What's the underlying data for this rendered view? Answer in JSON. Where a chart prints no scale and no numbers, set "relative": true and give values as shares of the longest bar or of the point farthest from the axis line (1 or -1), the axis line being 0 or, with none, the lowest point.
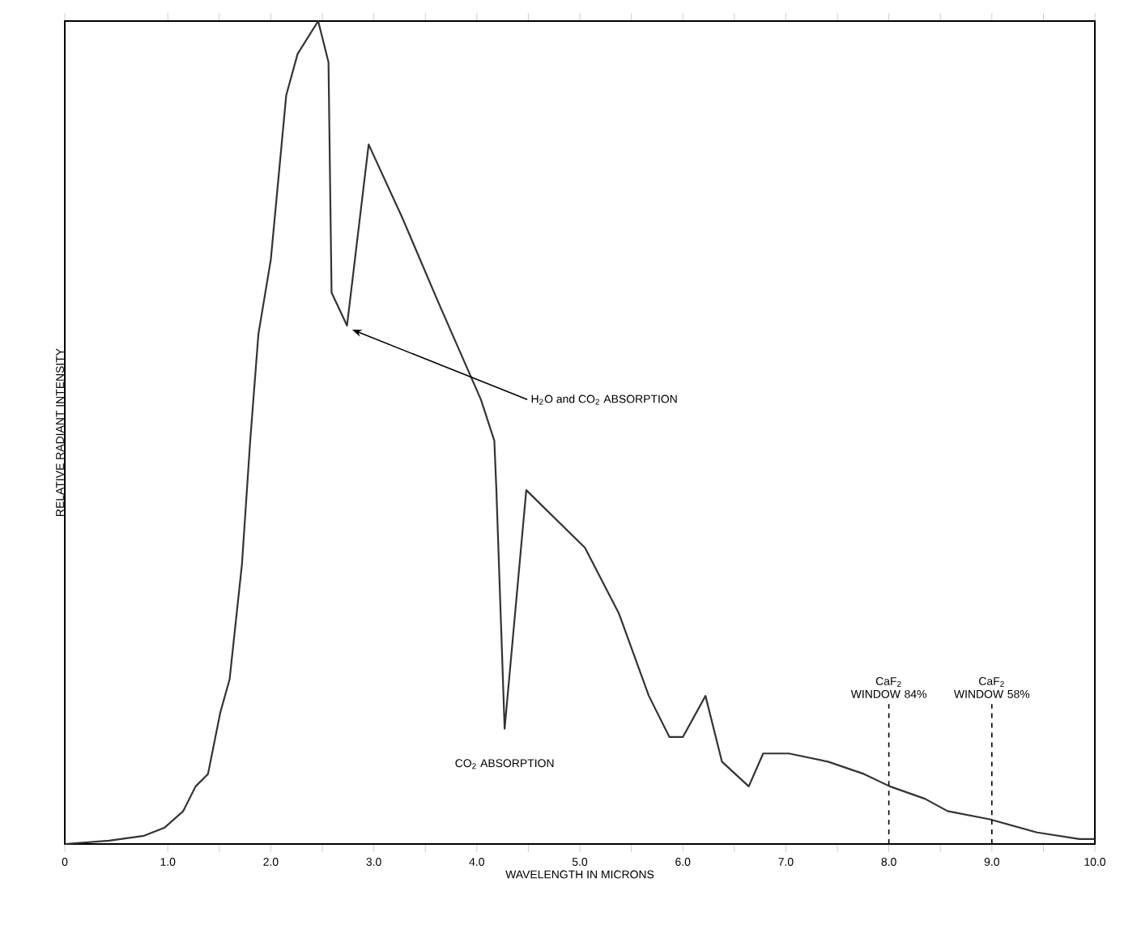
{
  "chart_data": {
    "type": "line",
    "relative": true,
    "xlabel": "WAVELENGTH IN MICRONS",
    "ylabel": "RELATIVE RADIANT INTENSITY",
    "color": "#333333",
    "xlim": [
      0,
      10
    ],
    "xticks": [
      0,
      {
        "value": 1,
        "label": "1.0"
      },
      {
        "value": 1.5,
        "label": null
      },
      {
        "value": 2,
        "label": "2.0"
      },
      {
        "value": 2.5,
        "label": null
      },
      {
        "value": 3,
        "label": "3.0"
      },
      {
        "value": 3.5,
        "label": null
      },
      {
        "value": 4,
        "label": "4.0"
      },
      {
        "value": 4.5,
        "label": null
      },
      {
        "value": 5,
        "label": "5.0"
      },
      {
        "value": 5.5,
        "label": null
      },
      {
        "value": 6,
        "label": "6.0"
      },
      {
        "value": 6.5,
        "label": null
      },
      {
        "value": 7,
        "label": "7.0"
      },
      {
        "value": 7.5,
        "label": null
      },
      {
        "value": 8,
        "label": "8.0"
      },
      {
        "value": 8.5,
        "label": null
      },
      {
        "value": 9,
        "label": "9.0"
      },
      {
        "value": 9.5,
        "label": null
      },
      {
        "value": 10,
        "label": "10.0"
      }
    ],
    "x": [
      0,
      0.43,
      0.77,
      0.97,
      1.15,
      1.27,
      1.39,
      1.51,
      1.6,
      1.72,
      1.8,
      1.88,
      2.0,
      2.15,
      2.26,
      2.46,
      2.56,
      2.59,
      2.74,
      2.95,
      3.28,
      3.62,
      4.04,
      4.17,
      4.19,
      4.27,
      4.48,
      5.05,
      5.38,
      5.67,
      5.87,
      6.0,
      6.22,
      6.38,
      6.64,
      6.78,
      7.03,
      7.41,
      7.76,
      8.01,
      8.35,
      8.57,
      8.98,
      9.44,
      9.85,
      10.0
    ],
    "values": [
      0,
      0.004,
      0.01,
      0.02,
      0.04,
      0.07,
      0.085,
      0.16,
      0.2,
      0.34,
      0.49,
      0.62,
      0.71,
      0.91,
      0.96,
      1,
      0.95,
      0.67,
      0.63,
      0.85,
      0.76,
      0.66,
      0.54,
      0.49,
      0.43,
      0.14,
      0.43,
      0.36,
      0.28,
      0.18,
      0.13,
      0.13,
      0.18,
      0.1,
      0.07,
      0.11,
      0.11,
      0.1,
      0.085,
      0.07,
      0.055,
      0.04,
      0.03,
      0.014,
      0.006,
      0.006
    ],
    "ref_lines": [
      {
        "axis": "x",
        "value": 8,
        "label": "CaF$_{2}$ WINDOW 84%",
        "line_style": "dashed"
      },
      {
        "axis": "x",
        "value": 9,
        "label": "CaF$_{2}$ WINDOW 58%",
        "line_style": "dashed"
      }
    ],
    "annotations": [
      {
        "text": "H$_{2}$O and CO$_{2}$ ABSORPTION",
        "x": 2.74,
        "y": 0.63
      },
      {
        "text": "CO$_{2}$ ABSORPTION",
        "x": 4.27,
        "y": 0.14
      }
    ]
  }
}
